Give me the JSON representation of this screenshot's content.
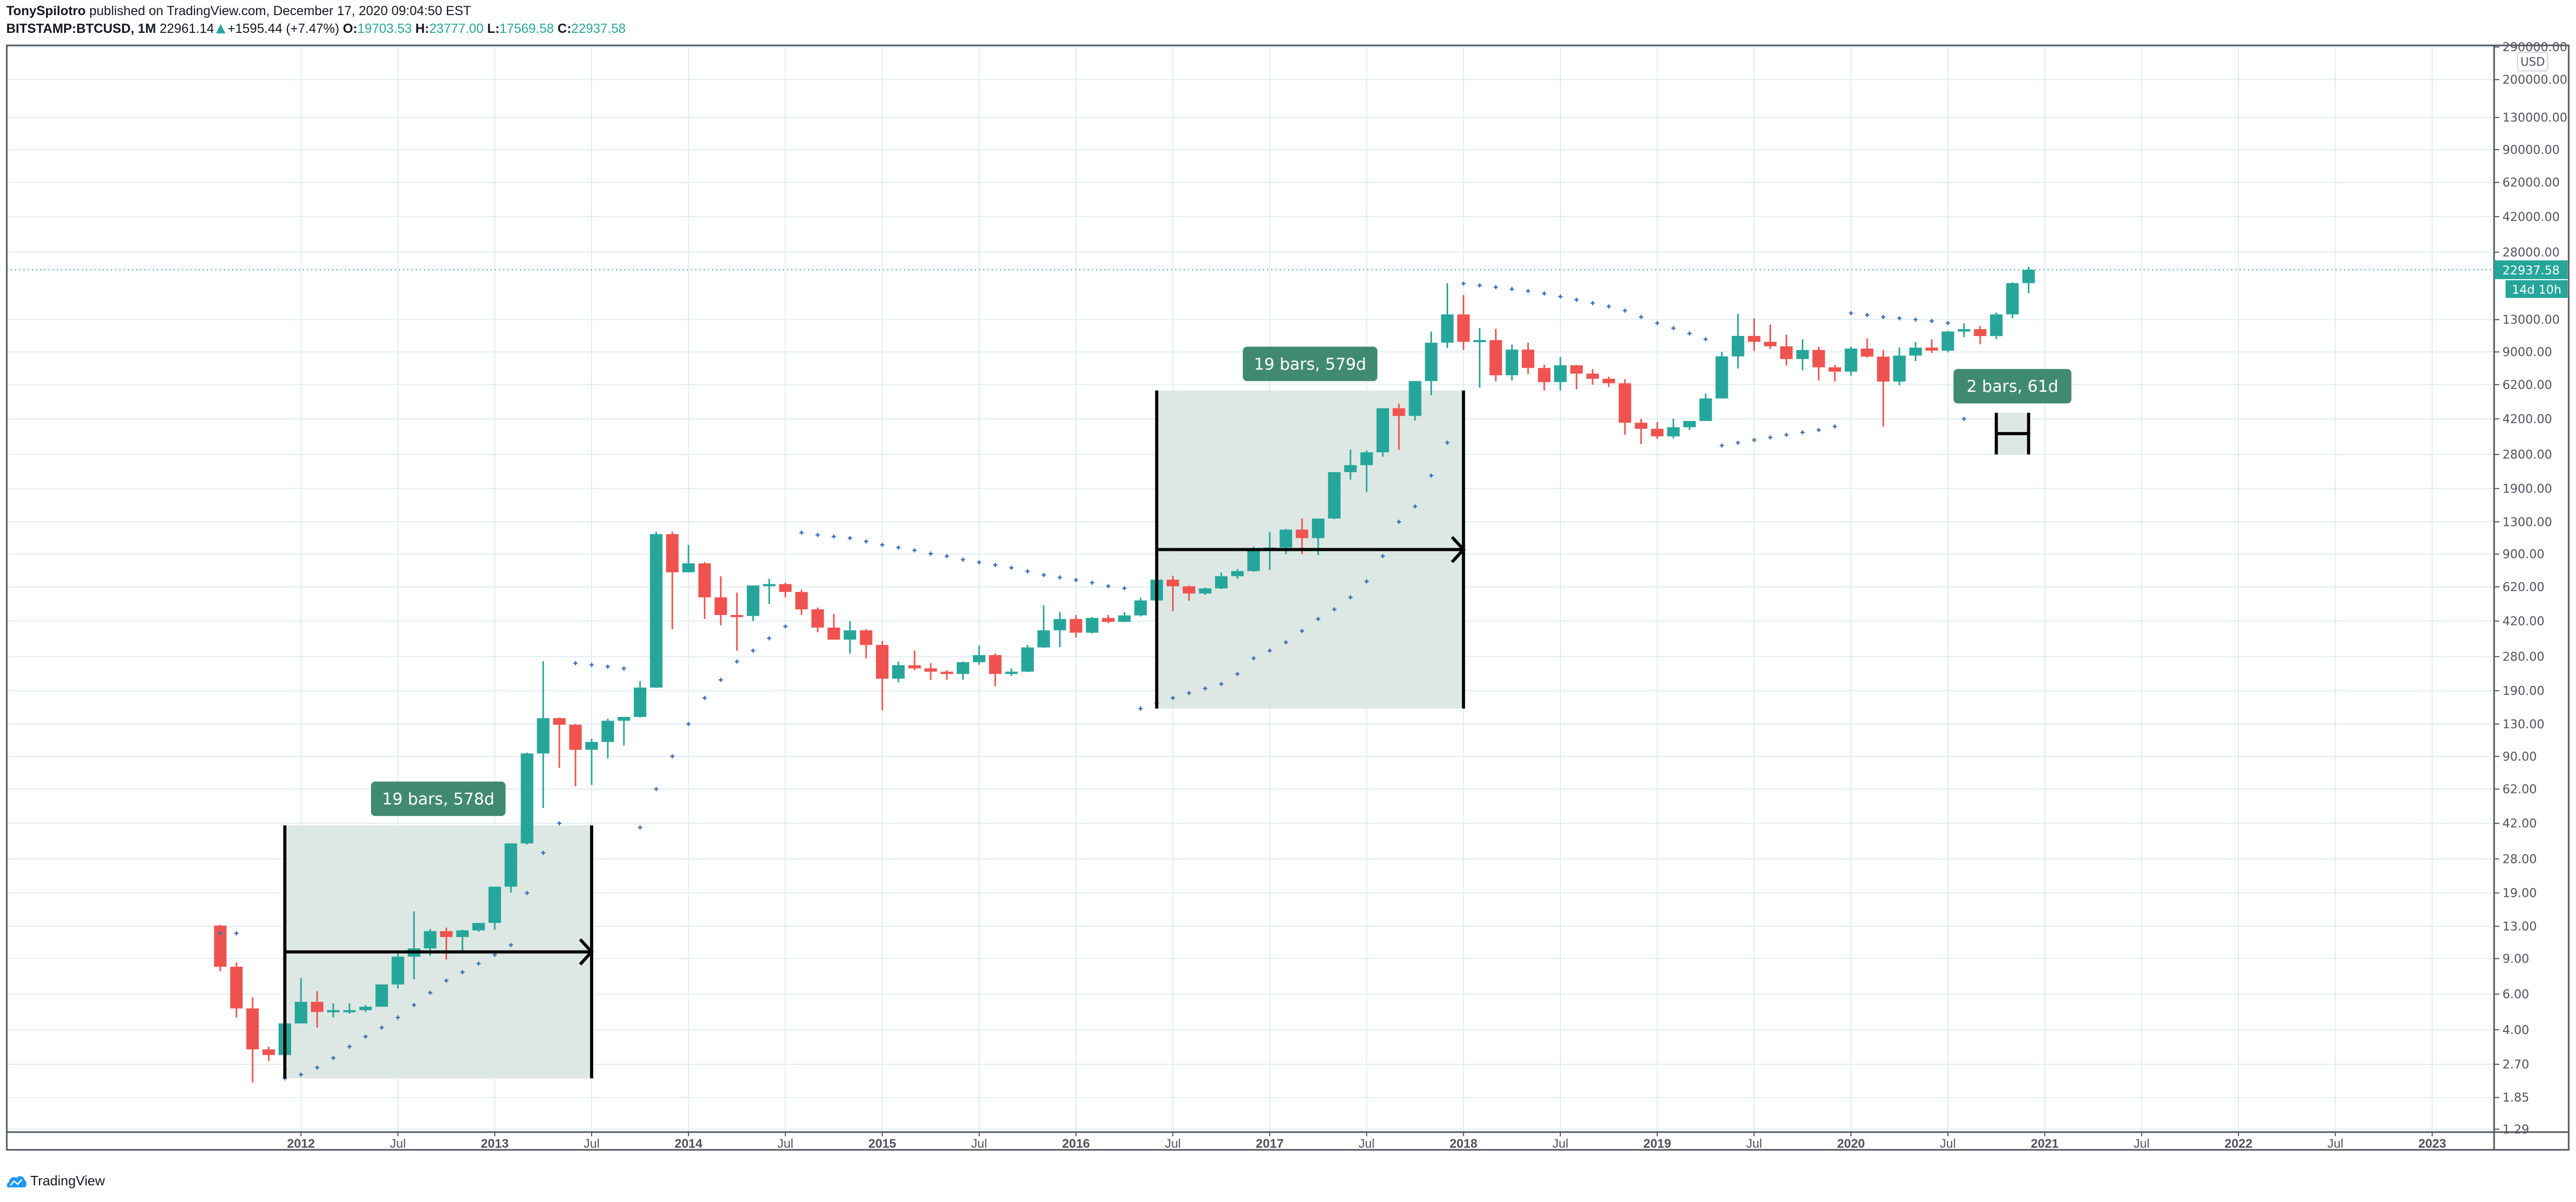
{
  "header": {
    "author": "TonySpilotro",
    "published_text": "published on TradingView.com, December 17, 2020 09:04:50 EST",
    "symbol": "BITSTAMP:BTCUSD, 1M",
    "last_price": "22961.14",
    "change": "+1595.44 (+7.47%)",
    "open_label": "O:",
    "open": "19703.53",
    "high_label": "H:",
    "high": "23777.00",
    "low_label": "L:",
    "low": "17569.58",
    "close_label": "C:",
    "close": "22937.58"
  },
  "footer": {
    "brand": "TradingView"
  },
  "colors": {
    "up": "#26a69a",
    "down": "#ef5350",
    "grid": "#e1ecf2",
    "axis": "#50535e",
    "sar": "#2962ff",
    "box_fill": "#d9e6e1",
    "label_bg": "#418a72",
    "price_tag": "#26a69a"
  },
  "chart_data": {
    "type": "candlestick",
    "title": "BITSTAMP:BTCUSD, 1M",
    "scale": "log",
    "currency_label": "USD",
    "ylim": [
      1.29,
      290000
    ],
    "y_ticks": [
      "290000.00",
      "200000.00",
      "130000.00",
      "90000.00",
      "62000.00",
      "42000.00",
      "28000.00",
      "13000.00",
      "9000.00",
      "6200.00",
      "4200.00",
      "2800.00",
      "1900.00",
      "1300.00",
      "900.00",
      "620.00",
      "420.00",
      "280.00",
      "190.00",
      "130.00",
      "90.00",
      "62.00",
      "42.00",
      "28.00",
      "19.00",
      "13.00",
      "9.00",
      "6.00",
      "4.00",
      "2.70",
      "1.85",
      "1.29"
    ],
    "x_ticks": [
      "2012",
      "Jul",
      "2013",
      "Jul",
      "2014",
      "Jul",
      "2015",
      "Jul",
      "2016",
      "Jul",
      "2017",
      "Jul",
      "2018",
      "Jul",
      "2019",
      "Jul",
      "2020",
      "Jul",
      "2021",
      "Jul",
      "2022",
      "Jul",
      "2023"
    ],
    "current_price_tag": "22937.58",
    "countdown_tag": "14d 10h",
    "start_month": "2011-08",
    "ohlc": [
      [
        13.1,
        13.2,
        7.8,
        8.2
      ],
      [
        8.2,
        8.6,
        4.6,
        5.1
      ],
      [
        5.1,
        5.8,
        2.2,
        3.2
      ],
      [
        3.2,
        3.3,
        2.8,
        3.0
      ],
      [
        3.0,
        4.4,
        2.5,
        4.3
      ],
      [
        4.3,
        7.2,
        4.3,
        5.5
      ],
      [
        5.5,
        6.2,
        4.1,
        4.9
      ],
      [
        4.9,
        5.4,
        4.6,
        5.0
      ],
      [
        5.0,
        5.4,
        4.8,
        5.0
      ],
      [
        5.0,
        5.3,
        4.9,
        5.2
      ],
      [
        5.2,
        6.7,
        5.2,
        6.7
      ],
      [
        6.7,
        9.5,
        6.4,
        9.2
      ],
      [
        9.2,
        15.4,
        7.1,
        10.1
      ],
      [
        10.1,
        12.6,
        9.3,
        12.3
      ],
      [
        12.3,
        12.8,
        8.9,
        11.5
      ],
      [
        11.5,
        12.5,
        9.8,
        12.4
      ],
      [
        12.4,
        13.3,
        12.2,
        13.5
      ],
      [
        13.5,
        14.0,
        12.5,
        20.4
      ],
      [
        20.4,
        31.9,
        19.1,
        33.4
      ],
      [
        33.4,
        94.0,
        33.0,
        93.0
      ],
      [
        93.0,
        266,
        50,
        139
      ],
      [
        139,
        140,
        79,
        129
      ],
      [
        129,
        130,
        64,
        97
      ],
      [
        97,
        110,
        65,
        106
      ],
      [
        106,
        138,
        88,
        135
      ],
      [
        135,
        137,
        102,
        141
      ],
      [
        141,
        212,
        140,
        197
      ],
      [
        197,
        1163,
        196,
        1130
      ],
      [
        1130,
        1163,
        383,
        732
      ],
      [
        732,
        1000,
        730,
        810
      ],
      [
        810,
        820,
        430,
        550
      ],
      [
        550,
        700,
        400,
        450
      ],
      [
        450,
        580,
        300,
        445
      ],
      [
        445,
        625,
        420,
        630
      ],
      [
        630,
        680,
        510,
        640
      ],
      [
        640,
        650,
        550,
        585
      ],
      [
        585,
        600,
        450,
        480
      ],
      [
        480,
        490,
        370,
        390
      ],
      [
        390,
        455,
        360,
        340
      ],
      [
        340,
        420,
        290,
        378
      ],
      [
        378,
        384,
        275,
        320
      ],
      [
        320,
        335,
        152,
        218
      ],
      [
        218,
        265,
        209,
        254
      ],
      [
        254,
        300,
        240,
        245
      ],
      [
        245,
        260,
        215,
        236
      ],
      [
        236,
        240,
        215,
        230
      ],
      [
        230,
        265,
        215,
        263
      ],
      [
        263,
        318,
        255,
        285
      ],
      [
        285,
        290,
        200,
        230
      ],
      [
        230,
        245,
        225,
        236
      ],
      [
        236,
        320,
        235,
        311
      ],
      [
        311,
        502,
        310,
        378
      ],
      [
        378,
        465,
        312,
        430
      ],
      [
        430,
        450,
        349,
        368
      ],
      [
        368,
        440,
        365,
        435
      ],
      [
        435,
        450,
        410,
        416
      ],
      [
        416,
        465,
        415,
        448
      ],
      [
        448,
        548,
        443,
        531
      ],
      [
        531,
        777,
        530,
        673
      ],
      [
        673,
        704,
        470,
        624
      ],
      [
        624,
        630,
        530,
        575
      ],
      [
        575,
        615,
        565,
        609
      ],
      [
        609,
        730,
        605,
        700
      ],
      [
        700,
        760,
        680,
        742
      ],
      [
        742,
        980,
        735,
        964
      ],
      [
        964,
        1160,
        752,
        970
      ],
      [
        970,
        1200,
        900,
        1190
      ],
      [
        1190,
        1350,
        900,
        1080
      ],
      [
        1080,
        1290,
        890,
        1350
      ],
      [
        1350,
        2080,
        1340,
        2290
      ],
      [
        2290,
        2960,
        2100,
        2480
      ],
      [
        2480,
        2930,
        1830,
        2870
      ],
      [
        2870,
        4735,
        2730,
        4740
      ],
      [
        4740,
        4990,
        2950,
        4340
      ],
      [
        4340,
        6450,
        4120,
        6460
      ],
      [
        6460,
        11340,
        5500,
        10000
      ],
      [
        10000,
        19666,
        9400,
        13800
      ],
      [
        13800,
        17200,
        9200,
        10100
      ],
      [
        10100,
        11800,
        6000,
        10300
      ],
      [
        10300,
        11700,
        6450,
        6900
      ],
      [
        6900,
        9800,
        6500,
        9240
      ],
      [
        9240,
        10000,
        7000,
        7500
      ],
      [
        7500,
        7780,
        5800,
        6380
      ],
      [
        6380,
        8500,
        5800,
        7730
      ],
      [
        7730,
        7760,
        5880,
        7030
      ],
      [
        7030,
        7400,
        6200,
        6630
      ],
      [
        6630,
        6780,
        6050,
        6300
      ],
      [
        6300,
        6600,
        3500,
        4020
      ],
      [
        4020,
        4200,
        3150,
        3750
      ],
      [
        3750,
        4050,
        3350,
        3440
      ],
      [
        3440,
        4200,
        3360,
        3820
      ],
      [
        3820,
        4100,
        3700,
        4100
      ],
      [
        4100,
        5600,
        4100,
        5300
      ],
      [
        5300,
        9000,
        5300,
        8550
      ],
      [
        8550,
        13880,
        7450,
        10800
      ],
      [
        10800,
        13200,
        9100,
        10100
      ],
      [
        10100,
        12300,
        9320,
        9600
      ],
      [
        9600,
        10950,
        7710,
        8300
      ],
      [
        8300,
        10400,
        7300,
        9200
      ],
      [
        9200,
        9520,
        6500,
        7550
      ],
      [
        7550,
        7750,
        6430,
        7190
      ],
      [
        7190,
        9550,
        6860,
        9350
      ],
      [
        9350,
        10500,
        8450,
        8530
      ],
      [
        8530,
        9200,
        3850,
        6420
      ],
      [
        6420,
        9480,
        6150,
        8630
      ],
      [
        8630,
        10080,
        8110,
        9450
      ],
      [
        9450,
        10390,
        8900,
        9130
      ],
      [
        9130,
        11460,
        8960,
        11350
      ],
      [
        11350,
        12470,
        10660,
        11660
      ],
      [
        11660,
        12080,
        9820,
        10780
      ],
      [
        10780,
        14100,
        10420,
        13800
      ],
      [
        13800,
        19880,
        13210,
        19700
      ],
      [
        19703.53,
        23777.0,
        17569.58,
        22937.58
      ]
    ],
    "parabolic_sar": [
      [
        0,
        12
      ],
      [
        1,
        12
      ],
      [
        4,
        2.3
      ],
      [
        5,
        2.4
      ],
      [
        6,
        2.6
      ],
      [
        7,
        2.9
      ],
      [
        8,
        3.3
      ],
      [
        9,
        3.7
      ],
      [
        10,
        4.1
      ],
      [
        11,
        4.6
      ],
      [
        12,
        5.3
      ],
      [
        13,
        6.1
      ],
      [
        14,
        7.0
      ],
      [
        15,
        7.7
      ],
      [
        16,
        8.5
      ],
      [
        17,
        9.4
      ],
      [
        18,
        10.5
      ],
      [
        19,
        19
      ],
      [
        20,
        30
      ],
      [
        21,
        42
      ],
      [
        22,
        260
      ],
      [
        23,
        255
      ],
      [
        24,
        250
      ],
      [
        25,
        245
      ],
      [
        26,
        40
      ],
      [
        27,
        62
      ],
      [
        28,
        90
      ],
      [
        29,
        130
      ],
      [
        30,
        175
      ],
      [
        31,
        215
      ],
      [
        32,
        265
      ],
      [
        33,
        300
      ],
      [
        34,
        345
      ],
      [
        35,
        395
      ],
      [
        36,
        1150
      ],
      [
        37,
        1120
      ],
      [
        38,
        1100
      ],
      [
        39,
        1080
      ],
      [
        40,
        1040
      ],
      [
        41,
        1000
      ],
      [
        42,
        970
      ],
      [
        43,
        940
      ],
      [
        44,
        905
      ],
      [
        45,
        880
      ],
      [
        46,
        845
      ],
      [
        47,
        820
      ],
      [
        48,
        795
      ],
      [
        49,
        770
      ],
      [
        50,
        740
      ],
      [
        51,
        710
      ],
      [
        52,
        690
      ],
      [
        53,
        670
      ],
      [
        54,
        650
      ],
      [
        55,
        625
      ],
      [
        56,
        610
      ],
      [
        57,
        155
      ],
      [
        58,
        165
      ],
      [
        59,
        175
      ],
      [
        60,
        185
      ],
      [
        61,
        195
      ],
      [
        62,
        205
      ],
      [
        63,
        230
      ],
      [
        64,
        275
      ],
      [
        65,
        300
      ],
      [
        66,
        330
      ],
      [
        67,
        375
      ],
      [
        68,
        430
      ],
      [
        69,
        480
      ],
      [
        70,
        550
      ],
      [
        71,
        660
      ],
      [
        72,
        880
      ],
      [
        73,
        1300
      ],
      [
        74,
        1550
      ],
      [
        75,
        2200
      ],
      [
        76,
        3200
      ],
      [
        77,
        19600
      ],
      [
        78,
        19200
      ],
      [
        79,
        18800
      ],
      [
        80,
        18400
      ],
      [
        81,
        18000
      ],
      [
        82,
        17500
      ],
      [
        83,
        16900
      ],
      [
        84,
        16300
      ],
      [
        85,
        15700
      ],
      [
        86,
        15100
      ],
      [
        87,
        14400
      ],
      [
        88,
        13400
      ],
      [
        89,
        12500
      ],
      [
        90,
        11800
      ],
      [
        91,
        11100
      ],
      [
        92,
        10400
      ],
      [
        93,
        3100
      ],
      [
        94,
        3200
      ],
      [
        95,
        3300
      ],
      [
        96,
        3400
      ],
      [
        97,
        3500
      ],
      [
        98,
        3600
      ],
      [
        99,
        3700
      ],
      [
        100,
        3850
      ],
      [
        101,
        14000
      ],
      [
        102,
        13700
      ],
      [
        103,
        13400
      ],
      [
        104,
        13200
      ],
      [
        105,
        13000
      ],
      [
        106,
        12800
      ],
      [
        107,
        12500
      ],
      [
        108,
        4200
      ]
    ],
    "annotations": [
      {
        "label": "19 bars, 578d",
        "start_index": 4,
        "end_index": 23,
        "low": 2.3,
        "high": 41
      },
      {
        "label": "19 bars, 579d",
        "start_index": 58,
        "end_index": 77,
        "low": 155,
        "high": 5800
      },
      {
        "label": "2 bars, 61d",
        "start_index": 110,
        "end_index": 112,
        "low": 2800,
        "high": 4500
      }
    ]
  }
}
